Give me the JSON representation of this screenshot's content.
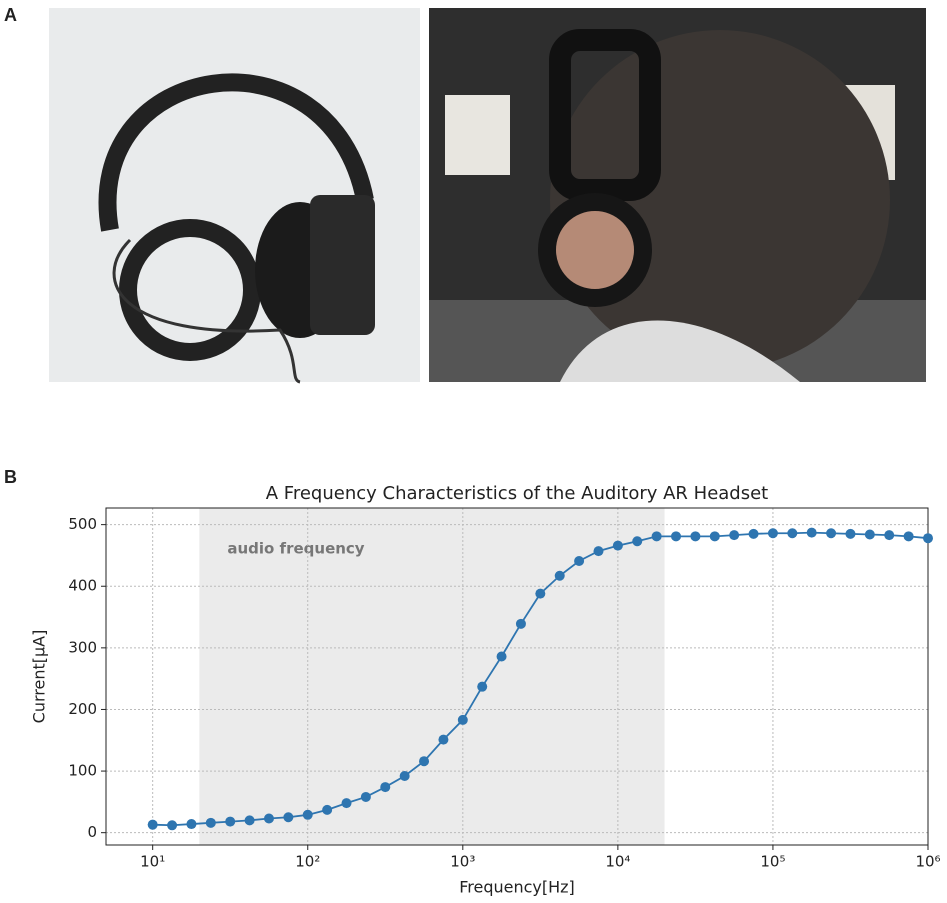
{
  "panel_labels": [
    "A",
    "B"
  ],
  "chart_data": {
    "type": "line",
    "title": "A Frequency Characteristics of the Auditory AR Headset",
    "x_label": "Frequency[Hz]",
    "y_label": "Current[μA]",
    "log_x": true,
    "grid": true,
    "xlim": [
      5,
      1000000
    ],
    "ylim": [
      -20,
      527
    ],
    "xticks": [
      {
        "value": 10,
        "label": "10¹"
      },
      {
        "value": 100,
        "label": "10²"
      },
      {
        "value": 1000,
        "label": "10³"
      },
      {
        "value": 10000,
        "label": "10⁴"
      },
      {
        "value": 100000,
        "label": "10⁵"
      },
      {
        "value": 1000000,
        "label": "10⁶"
      }
    ],
    "yticks": [
      0,
      100,
      200,
      300,
      400,
      500
    ],
    "band": {
      "label": "audio frequency",
      "range": [
        20,
        20000
      ],
      "color": "#ebebeb"
    },
    "x": [
      10,
      13.34,
      17.78,
      23.71,
      31.62,
      42.17,
      56.23,
      74.99,
      100,
      133.4,
      177.8,
      237.1,
      316.2,
      421.7,
      562.3,
      749.9,
      1000,
      1334,
      1778,
      2371,
      3162,
      4217,
      5623,
      7499,
      10000,
      13335,
      17783,
      23714,
      31623,
      42170,
      56234,
      74989,
      100000,
      133352,
      177828,
      237137,
      316228,
      421697,
      562341,
      749894,
      1000000
    ],
    "series": [
      {
        "name": "Current",
        "color": "#2e75b0",
        "values": [
          13,
          12,
          14,
          16,
          18,
          20,
          23,
          25,
          29,
          37,
          48,
          58,
          74,
          92,
          116,
          151,
          183,
          237,
          286,
          339,
          388,
          417,
          441,
          457,
          466,
          473,
          481,
          481,
          481,
          481,
          483,
          485,
          486,
          486,
          487,
          486,
          485,
          484,
          483,
          481,
          478
        ]
      }
    ]
  }
}
